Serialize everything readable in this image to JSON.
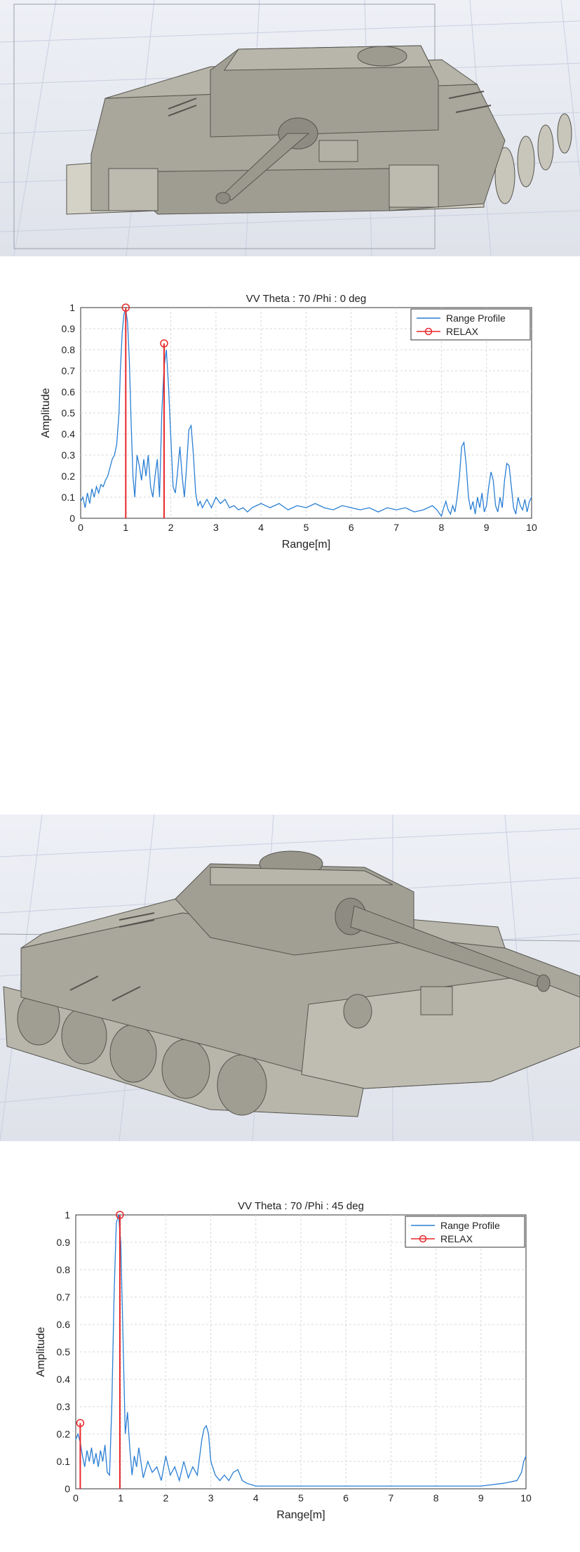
{
  "scenes": [
    {
      "icon": "tank-front-view-icon"
    },
    {
      "icon": "tank-oblique-view-icon"
    }
  ],
  "colors": {
    "range_profile": "#2a7fd4",
    "relax": "#e8282a",
    "tank_body": "#a9a79c",
    "grid_floor": "#c9cfe0"
  },
  "chart_data": [
    {
      "type": "line",
      "title": "VV Theta : 70 /Phi : 0 deg",
      "xlabel": "Range[m]",
      "ylabel": "Amplitude",
      "xlim": [
        0,
        10
      ],
      "ylim": [
        0,
        1
      ],
      "xticks": [
        "0",
        "1",
        "2",
        "3",
        "4",
        "5",
        "6",
        "7",
        "8",
        "9",
        "10"
      ],
      "yticks": [
        "0",
        "0.1",
        "0.2",
        "0.3",
        "0.4",
        "0.5",
        "0.6",
        "0.7",
        "0.8",
        "0.9",
        "1"
      ],
      "grid": true,
      "legend": "top-right",
      "series": [
        {
          "name": "Range Profile",
          "x": [
            0,
            0.05,
            0.1,
            0.15,
            0.2,
            0.25,
            0.3,
            0.35,
            0.4,
            0.45,
            0.5,
            0.55,
            0.6,
            0.65,
            0.7,
            0.75,
            0.8,
            0.85,
            0.88,
            0.92,
            0.96,
            1.0,
            1.04,
            1.08,
            1.12,
            1.16,
            1.2,
            1.25,
            1.3,
            1.35,
            1.4,
            1.45,
            1.5,
            1.55,
            1.6,
            1.65,
            1.7,
            1.75,
            1.8,
            1.85,
            1.9,
            1.95,
            2.0,
            2.05,
            2.1,
            2.15,
            2.2,
            2.25,
            2.3,
            2.35,
            2.4,
            2.45,
            2.5,
            2.55,
            2.6,
            2.65,
            2.7,
            2.8,
            2.9,
            3.0,
            3.1,
            3.2,
            3.3,
            3.4,
            3.5,
            3.6,
            3.7,
            3.8,
            3.9,
            4.0,
            4.2,
            4.4,
            4.6,
            4.8,
            5.0,
            5.2,
            5.4,
            5.6,
            5.8,
            6.0,
            6.2,
            6.4,
            6.6,
            6.8,
            7.0,
            7.2,
            7.4,
            7.6,
            7.8,
            7.9,
            8.0,
            8.05,
            8.1,
            8.15,
            8.2,
            8.25,
            8.3,
            8.35,
            8.4,
            8.45,
            8.5,
            8.55,
            8.6,
            8.65,
            8.7,
            8.75,
            8.8,
            8.85,
            8.9,
            8.95,
            9.0,
            9.05,
            9.1,
            9.15,
            9.2,
            9.25,
            9.3,
            9.35,
            9.4,
            9.45,
            9.5,
            9.55,
            9.6,
            9.65,
            9.7,
            9.75,
            9.8,
            9.85,
            9.9,
            9.95,
            10.0
          ],
          "y": [
            0.08,
            0.1,
            0.05,
            0.12,
            0.07,
            0.14,
            0.1,
            0.15,
            0.12,
            0.16,
            0.15,
            0.18,
            0.2,
            0.24,
            0.28,
            0.3,
            0.35,
            0.5,
            0.7,
            0.88,
            0.97,
            0.99,
            0.93,
            0.75,
            0.45,
            0.2,
            0.1,
            0.3,
            0.25,
            0.18,
            0.28,
            0.2,
            0.3,
            0.15,
            0.1,
            0.2,
            0.28,
            0.1,
            0.5,
            0.72,
            0.8,
            0.62,
            0.38,
            0.15,
            0.12,
            0.22,
            0.34,
            0.2,
            0.1,
            0.25,
            0.42,
            0.44,
            0.3,
            0.12,
            0.06,
            0.08,
            0.05,
            0.09,
            0.05,
            0.1,
            0.07,
            0.09,
            0.05,
            0.06,
            0.04,
            0.05,
            0.03,
            0.05,
            0.06,
            0.07,
            0.05,
            0.07,
            0.04,
            0.06,
            0.05,
            0.07,
            0.05,
            0.04,
            0.06,
            0.05,
            0.04,
            0.05,
            0.03,
            0.05,
            0.04,
            0.05,
            0.03,
            0.04,
            0.06,
            0.04,
            0.01,
            0.05,
            0.08,
            0.04,
            0.02,
            0.06,
            0.03,
            0.1,
            0.2,
            0.34,
            0.36,
            0.25,
            0.1,
            0.04,
            0.08,
            0.02,
            0.1,
            0.05,
            0.12,
            0.03,
            0.06,
            0.15,
            0.22,
            0.18,
            0.06,
            0.03,
            0.1,
            0.05,
            0.18,
            0.26,
            0.25,
            0.15,
            0.05,
            0.02,
            0.1,
            0.06,
            0.04,
            0.09,
            0.03,
            0.08,
            0.1
          ]
        },
        {
          "name": "RELAX",
          "type": "stem",
          "x": [
            1.0,
            1.85
          ],
          "y": [
            1.0,
            0.83
          ]
        }
      ]
    },
    {
      "type": "line",
      "title": "VV Theta : 70 /Phi : 45 deg",
      "xlabel": "Range[m]",
      "ylabel": "Amplitude",
      "xlim": [
        0,
        10
      ],
      "ylim": [
        0,
        1
      ],
      "xticks": [
        "0",
        "1",
        "2",
        "3",
        "4",
        "5",
        "6",
        "7",
        "8",
        "9",
        "10"
      ],
      "yticks": [
        "0",
        "0.1",
        "0.2",
        "0.3",
        "0.4",
        "0.5",
        "0.6",
        "0.7",
        "0.8",
        "0.9",
        "1"
      ],
      "grid": true,
      "legend": "top-right",
      "series": [
        {
          "name": "Range Profile",
          "x": [
            0,
            0.05,
            0.1,
            0.15,
            0.2,
            0.25,
            0.3,
            0.35,
            0.4,
            0.45,
            0.5,
            0.55,
            0.6,
            0.65,
            0.7,
            0.75,
            0.8,
            0.85,
            0.9,
            0.95,
            1.0,
            1.05,
            1.1,
            1.15,
            1.2,
            1.25,
            1.3,
            1.35,
            1.4,
            1.5,
            1.6,
            1.7,
            1.8,
            1.9,
            2.0,
            2.1,
            2.2,
            2.3,
            2.4,
            2.5,
            2.6,
            2.7,
            2.8,
            2.85,
            2.9,
            2.95,
            3.0,
            3.1,
            3.2,
            3.3,
            3.4,
            3.5,
            3.6,
            3.7,
            3.8,
            4.0,
            4.5,
            5.0,
            5.5,
            6.0,
            6.5,
            7.0,
            7.5,
            8.0,
            8.5,
            9.0,
            9.5,
            9.8,
            9.9,
            9.95,
            10.0
          ],
          "y": [
            0.18,
            0.2,
            0.17,
            0.12,
            0.08,
            0.14,
            0.1,
            0.15,
            0.09,
            0.13,
            0.08,
            0.14,
            0.1,
            0.16,
            0.06,
            0.05,
            0.3,
            0.7,
            0.97,
            1.0,
            0.9,
            0.55,
            0.2,
            0.28,
            0.15,
            0.05,
            0.12,
            0.08,
            0.15,
            0.04,
            0.1,
            0.06,
            0.08,
            0.03,
            0.12,
            0.05,
            0.08,
            0.03,
            0.1,
            0.04,
            0.08,
            0.05,
            0.18,
            0.22,
            0.23,
            0.2,
            0.1,
            0.05,
            0.03,
            0.05,
            0.03,
            0.06,
            0.07,
            0.03,
            0.02,
            0.01,
            0.01,
            0.01,
            0.01,
            0.01,
            0.01,
            0.01,
            0.01,
            0.01,
            0.01,
            0.01,
            0.02,
            0.03,
            0.06,
            0.1,
            0.12
          ]
        },
        {
          "name": "RELAX",
          "type": "stem",
          "x": [
            0.1,
            0.98
          ],
          "y": [
            0.24,
            1.0
          ]
        }
      ]
    }
  ]
}
